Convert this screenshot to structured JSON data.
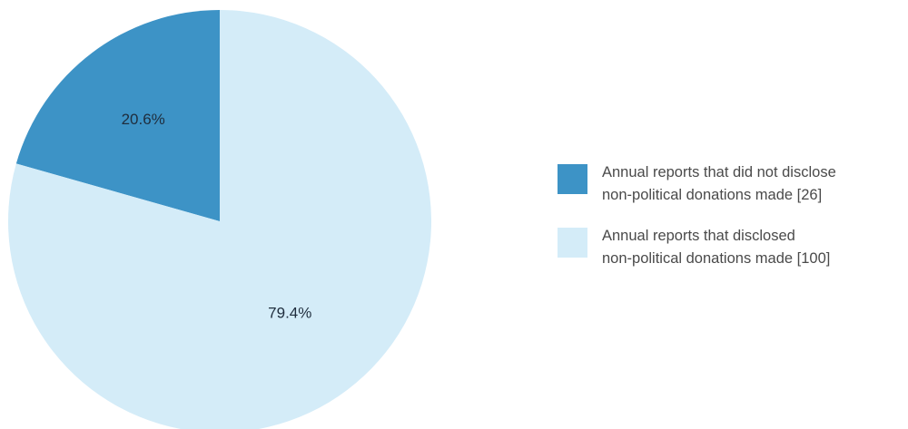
{
  "chart_data": {
    "type": "pie",
    "slices": [
      {
        "label_line1": "Annual reports that did not disclose",
        "label_line2": "non-political donations made [26]",
        "count": 26,
        "percent": 20.6,
        "percent_label": "20.6%",
        "color": "#3d93c6"
      },
      {
        "label_line1": "Annual reports that disclosed",
        "label_line2": "non-political donations made [100]",
        "count": 100,
        "percent": 79.4,
        "percent_label": "79.4%",
        "color": "#d4ecf8"
      }
    ],
    "legend_position": "right"
  }
}
